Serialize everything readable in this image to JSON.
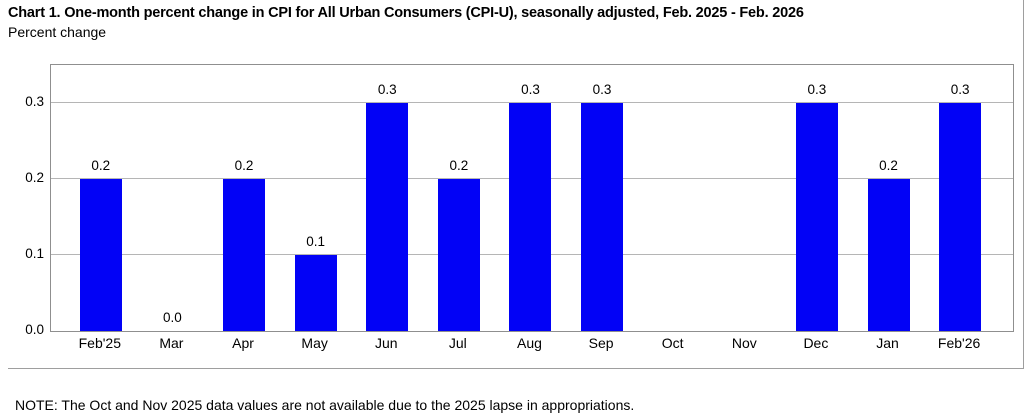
{
  "header": {
    "title": "Chart 1. One-month percent change in CPI for All Urban Consumers (CPI-U), seasonally adjusted, Feb. 2025 - Feb. 2026",
    "subtitle": "Percent change"
  },
  "footer": {
    "note": "NOTE: The Oct and Nov 2025 data values are not available due to the 2025 lapse in appropriations."
  },
  "colors": {
    "bar": "#0202f6",
    "gridline": "#b5b5b5",
    "plot_border": "#8f8f8f",
    "frame_border": "#9e9e9e",
    "text": "#000000",
    "background": "#ffffff"
  },
  "chart_data": {
    "type": "bar",
    "title": "Chart 1. One-month percent change in CPI for All Urban Consumers (CPI-U), seasonally adjusted, Feb. 2025 - Feb. 2026",
    "xlabel": "",
    "ylabel": "Percent change",
    "categories": [
      "Feb'25",
      "Mar",
      "Apr",
      "May",
      "Jun",
      "Jul",
      "Aug",
      "Sep",
      "Oct",
      "Nov",
      "Dec",
      "Jan",
      "Feb'26"
    ],
    "values": [
      0.2,
      0.0,
      0.2,
      0.1,
      0.3,
      0.2,
      0.3,
      0.3,
      null,
      null,
      0.3,
      0.2,
      0.3
    ],
    "value_labels": [
      "0.2",
      "0.0",
      "0.2",
      "0.1",
      "0.3",
      "0.2",
      "0.3",
      "0.3",
      "",
      "",
      "0.3",
      "0.2",
      "0.3"
    ],
    "missing_categories": [
      "Oct",
      "Nov"
    ],
    "ylim": [
      0,
      0.35
    ],
    "yticks": [
      0.0,
      0.1,
      0.2,
      0.3
    ],
    "ytick_labels": [
      "0.0",
      "0.1",
      "0.2",
      "0.3"
    ],
    "grid": true,
    "legend_position": "none"
  }
}
